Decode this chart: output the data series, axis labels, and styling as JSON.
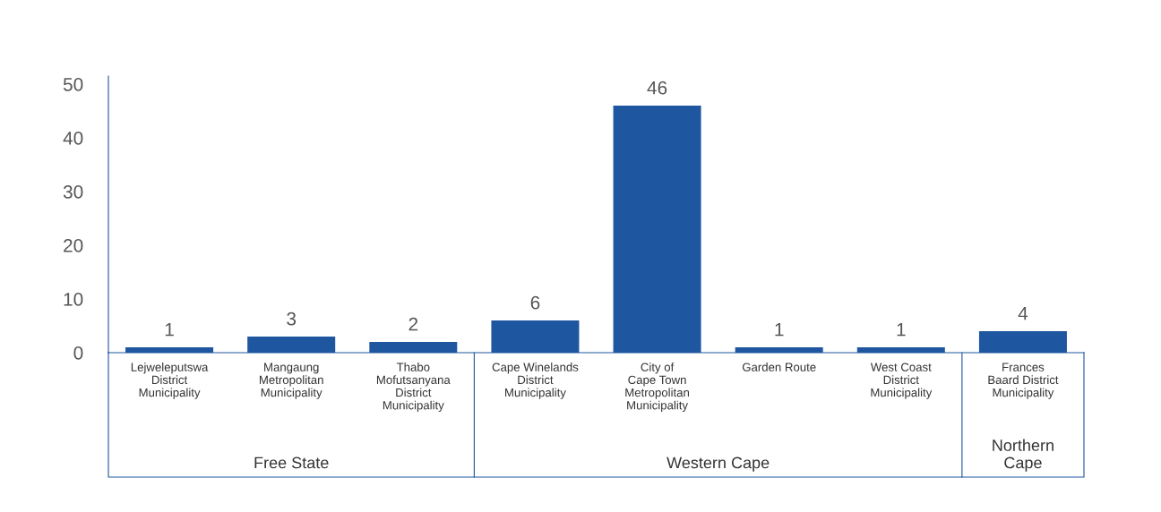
{
  "chart_data": {
    "type": "bar",
    "categories": [
      "Lejweleputswa\nDistrict\nMunicipality",
      "Mangaung\nMetropolitan\nMunicipality",
      "Thabo\nMofutsanyana\nDistrict\nMunicipality",
      "Cape Winelands\nDistrict\nMunicipality",
      "City of\nCape Town\nMetropolitan\nMunicipality",
      "Garden Route",
      "West Coast\nDistrict\nMunicipality",
      "Frances\nBaard District\nMunicipality"
    ],
    "values": [
      1,
      3,
      2,
      6,
      46,
      1,
      1,
      4
    ],
    "color": "#1f56a0",
    "data_labels": true,
    "ylim": [
      0,
      51.5
    ],
    "yticks": [
      0,
      10,
      20,
      30,
      40,
      50
    ],
    "grid": false,
    "annotations": [
      "Free State",
      "Western Cape",
      "Northern\nCape"
    ]
  }
}
